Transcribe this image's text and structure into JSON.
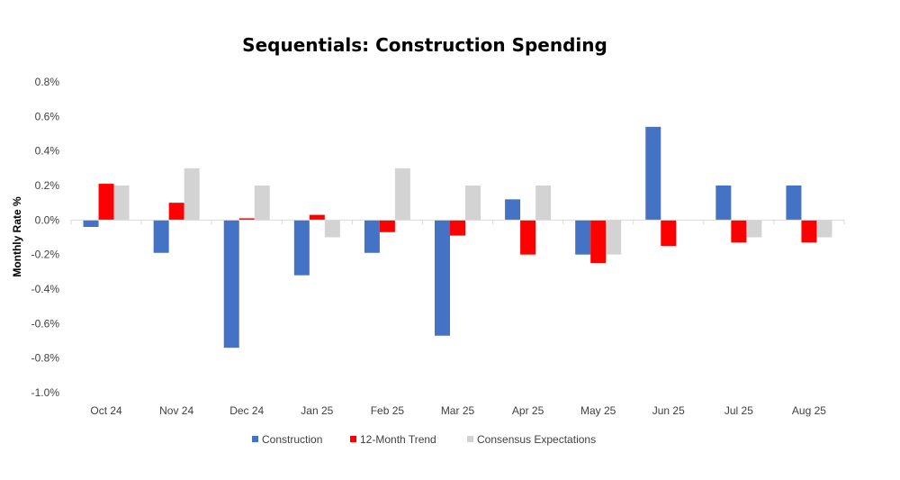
{
  "chart_data": {
    "type": "bar",
    "title": "Sequentials: Construction Spending",
    "xlabel": "",
    "ylabel": "Monthly Rate %",
    "ylim": [
      -1.0,
      0.8
    ],
    "yticks": [
      "0.8%",
      "0.6%",
      "0.4%",
      "0.2%",
      "0.0%",
      "-0.2%",
      "-0.4%",
      "-0.6%",
      "-0.8%",
      "-1.0%"
    ],
    "ytick_values": [
      0.8,
      0.6,
      0.4,
      0.2,
      0.0,
      -0.2,
      -0.4,
      -0.6,
      -0.8,
      -1.0
    ],
    "categories": [
      "Oct 24",
      "Nov 24",
      "Dec 24",
      "Jan 25",
      "Feb 25",
      "Mar 25",
      "Apr 25",
      "May 25",
      "Jun 25",
      "Jul 25",
      "Aug 25"
    ],
    "legend_position": "bottom",
    "grid": false,
    "series": [
      {
        "name": "Construction",
        "color": "#4472C4",
        "values": [
          -0.04,
          -0.19,
          -0.74,
          -0.32,
          -0.19,
          -0.67,
          0.12,
          -0.2,
          0.54,
          0.2,
          0.2
        ]
      },
      {
        "name": "12-Month Trend",
        "color": "#FF0000",
        "values": [
          0.21,
          0.1,
          0.01,
          0.03,
          -0.07,
          -0.09,
          -0.2,
          -0.25,
          -0.15,
          -0.13,
          -0.13
        ]
      },
      {
        "name": "Consensus Expectations",
        "color": "#D3D3D3",
        "values": [
          0.2,
          0.3,
          0.2,
          -0.1,
          0.3,
          0.2,
          0.2,
          -0.2,
          0.0,
          -0.1,
          -0.1
        ]
      }
    ]
  }
}
